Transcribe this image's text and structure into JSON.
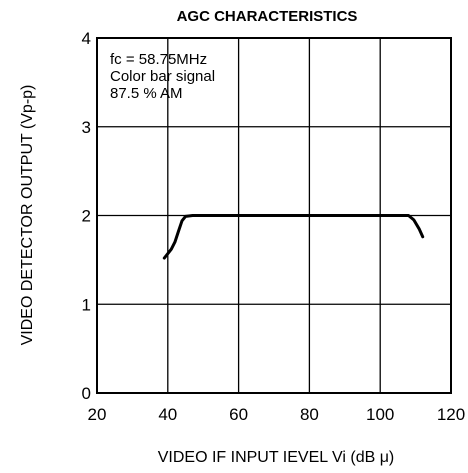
{
  "chart_data": {
    "type": "line",
    "title": "AGC CHARACTERISTICS",
    "xlabel": "VIDEO IF INPUT IEVEL Vi (dB μ)",
    "ylabel": "VIDEO DETECTOR OUTPUT (Vp-p)",
    "xlim": [
      20,
      120
    ],
    "ylim": [
      0,
      4
    ],
    "x_ticks": [
      "20",
      "40",
      "60",
      "80",
      "100",
      "120"
    ],
    "y_ticks": [
      "0",
      "1",
      "2",
      "3",
      "4"
    ],
    "grid": true,
    "annotations": [
      "fc = 58.75MHz",
      "Color bar signal",
      "87.5 % AM"
    ],
    "series": [
      {
        "x": [
          39,
          41,
          42,
          43,
          44,
          45,
          47,
          60,
          80,
          100,
          108,
          109.5,
          111,
          112
        ],
        "y": [
          1.52,
          1.62,
          1.7,
          1.82,
          1.94,
          1.99,
          2.0,
          2.0,
          2.0,
          2.0,
          2.0,
          1.95,
          1.85,
          1.76
        ]
      }
    ],
    "colors": {
      "line": "#000000",
      "grid": "#000000",
      "background": "#ffffff"
    }
  }
}
